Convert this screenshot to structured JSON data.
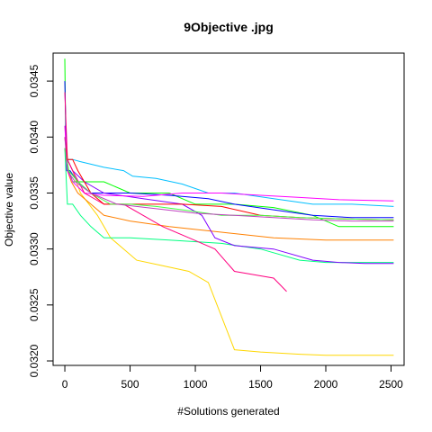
{
  "chart_data": {
    "type": "line",
    "title": "9Objective .jpg",
    "xlabel": "#Solutions generated",
    "ylabel": "Objective value",
    "xlim": [
      -90,
      2600
    ],
    "ylim": [
      0.03196,
      0.03475
    ],
    "x_ticks": [
      0,
      500,
      1000,
      1500,
      2000,
      2500
    ],
    "x_tick_labels": [
      "0",
      "500",
      "1000",
      "1500",
      "2000",
      "2500"
    ],
    "y_ticks": [
      0.032,
      0.0325,
      0.033,
      0.0335,
      0.034,
      0.0345
    ],
    "y_tick_labels": [
      "0.0320",
      "0.0325",
      "0.0330",
      "0.0335",
      "0.0340",
      "0.0345"
    ],
    "grid": false,
    "legend": "none",
    "series": [
      {
        "color": "#FFD700",
        "x": [
          0,
          20,
          60,
          120,
          250,
          350,
          550,
          750,
          950,
          1100,
          1300,
          1500,
          1800,
          2000,
          2300,
          2520
        ],
        "y": [
          0.0341,
          0.0338,
          0.0337,
          0.0335,
          0.0333,
          0.0331,
          0.0329,
          0.03285,
          0.0328,
          0.0327,
          0.0321,
          0.03208,
          0.03206,
          0.03205,
          0.03205,
          0.03205
        ]
      },
      {
        "color": "#FF8000",
        "x": [
          0,
          20,
          50,
          100,
          200,
          300,
          500,
          800,
          1200,
          1600,
          2000,
          2520
        ],
        "y": [
          0.0339,
          0.0337,
          0.0336,
          0.0335,
          0.0334,
          0.0333,
          0.03325,
          0.0332,
          0.03315,
          0.0331,
          0.03308,
          0.03308
        ]
      },
      {
        "color": "#00FF80",
        "x": [
          0,
          20,
          60,
          120,
          200,
          300,
          500,
          800,
          1200,
          1500,
          1800,
          2000,
          2520
        ],
        "y": [
          0.0339,
          0.0334,
          0.0334,
          0.0333,
          0.0332,
          0.0331,
          0.0331,
          0.03308,
          0.03305,
          0.033,
          0.0329,
          0.03288,
          0.03288
        ]
      },
      {
        "color": "#00FF00",
        "x": [
          0,
          8,
          15,
          30,
          60,
          150,
          300,
          500,
          800,
          1000,
          1300,
          1600,
          1900,
          2100,
          2520
        ],
        "y": [
          0.0347,
          0.0339,
          0.0338,
          0.0337,
          0.0336,
          0.0336,
          0.0336,
          0.0335,
          0.0335,
          0.0334,
          0.0334,
          0.03337,
          0.0333,
          0.0332,
          0.0332
        ]
      },
      {
        "color": "#00BFFF",
        "x": [
          0,
          20,
          60,
          120,
          300,
          450,
          520,
          700,
          900,
          1100,
          1300,
          1600,
          1900,
          2200,
          2520
        ],
        "y": [
          0.0339,
          0.0338,
          0.0338,
          0.03378,
          0.03373,
          0.0337,
          0.03365,
          0.03363,
          0.03358,
          0.0335,
          0.0335,
          0.03345,
          0.0334,
          0.0334,
          0.03338
        ]
      },
      {
        "color": "#0000FF",
        "x": [
          0,
          15,
          40,
          100,
          200,
          300,
          500,
          800,
          1100,
          1300,
          1600,
          1900,
          2200,
          2520
        ],
        "y": [
          0.0345,
          0.0337,
          0.0337,
          0.0336,
          0.0335,
          0.0335,
          0.0335,
          0.03348,
          0.03345,
          0.0334,
          0.03335,
          0.0333,
          0.03328,
          0.03328
        ]
      },
      {
        "color": "#8000FF",
        "x": [
          0,
          20,
          60,
          150,
          300,
          600,
          900,
          1050,
          1150,
          1300,
          1600,
          1900,
          2100,
          2300,
          2520
        ],
        "y": [
          0.0339,
          0.0338,
          0.0337,
          0.0336,
          0.0335,
          0.03345,
          0.0334,
          0.0333,
          0.0331,
          0.03303,
          0.033,
          0.0329,
          0.03288,
          0.03287,
          0.03287
        ]
      },
      {
        "color": "#FF00FF",
        "x": [
          0,
          20,
          60,
          150,
          300,
          600,
          900,
          1200,
          1500,
          1800,
          2100,
          2520
        ],
        "y": [
          0.0341,
          0.0337,
          0.0336,
          0.0335,
          0.03348,
          0.03347,
          0.0335,
          0.0335,
          0.03348,
          0.03346,
          0.03344,
          0.03343
        ]
      },
      {
        "color": "#FF0080",
        "x": [
          0,
          20,
          60,
          150,
          300,
          450,
          600,
          750,
          950,
          1150,
          1300,
          1450,
          1600,
          1700
        ],
        "y": [
          0.0344,
          0.0338,
          0.0337,
          0.0335,
          0.0334,
          0.0334,
          0.0333,
          0.0332,
          0.0331,
          0.033,
          0.0328,
          0.03277,
          0.03274,
          0.03262
        ]
      },
      {
        "color": "#FF0000",
        "x": [
          0,
          20,
          60,
          100,
          200,
          300,
          400,
          600,
          900,
          1200,
          1500,
          1800,
          2100,
          2520
        ],
        "y": [
          0.034,
          0.0338,
          0.0338,
          0.0337,
          0.0335,
          0.0334,
          0.0334,
          0.0334,
          0.0334,
          0.03338,
          0.0333,
          0.03328,
          0.03327,
          0.03326
        ]
      },
      {
        "color": "#40FF40",
        "x": [
          0,
          30,
          100,
          200,
          350,
          500,
          700,
          900,
          1200,
          1500,
          1800,
          2100,
          2520
        ],
        "y": [
          0.0339,
          0.0337,
          0.0336,
          0.0335,
          0.0334,
          0.0334,
          0.03338,
          0.03335,
          0.0333,
          0.0333,
          0.03328,
          0.03327,
          0.03326
        ]
      },
      {
        "color": "#C040C0",
        "x": [
          0,
          20,
          80,
          200,
          400,
          700,
          1000,
          1300,
          1600,
          1900,
          2200,
          2520
        ],
        "y": [
          0.034,
          0.0337,
          0.0336,
          0.0335,
          0.0334,
          0.03336,
          0.03332,
          0.0333,
          0.03328,
          0.03326,
          0.03325,
          0.03325
        ]
      }
    ]
  }
}
